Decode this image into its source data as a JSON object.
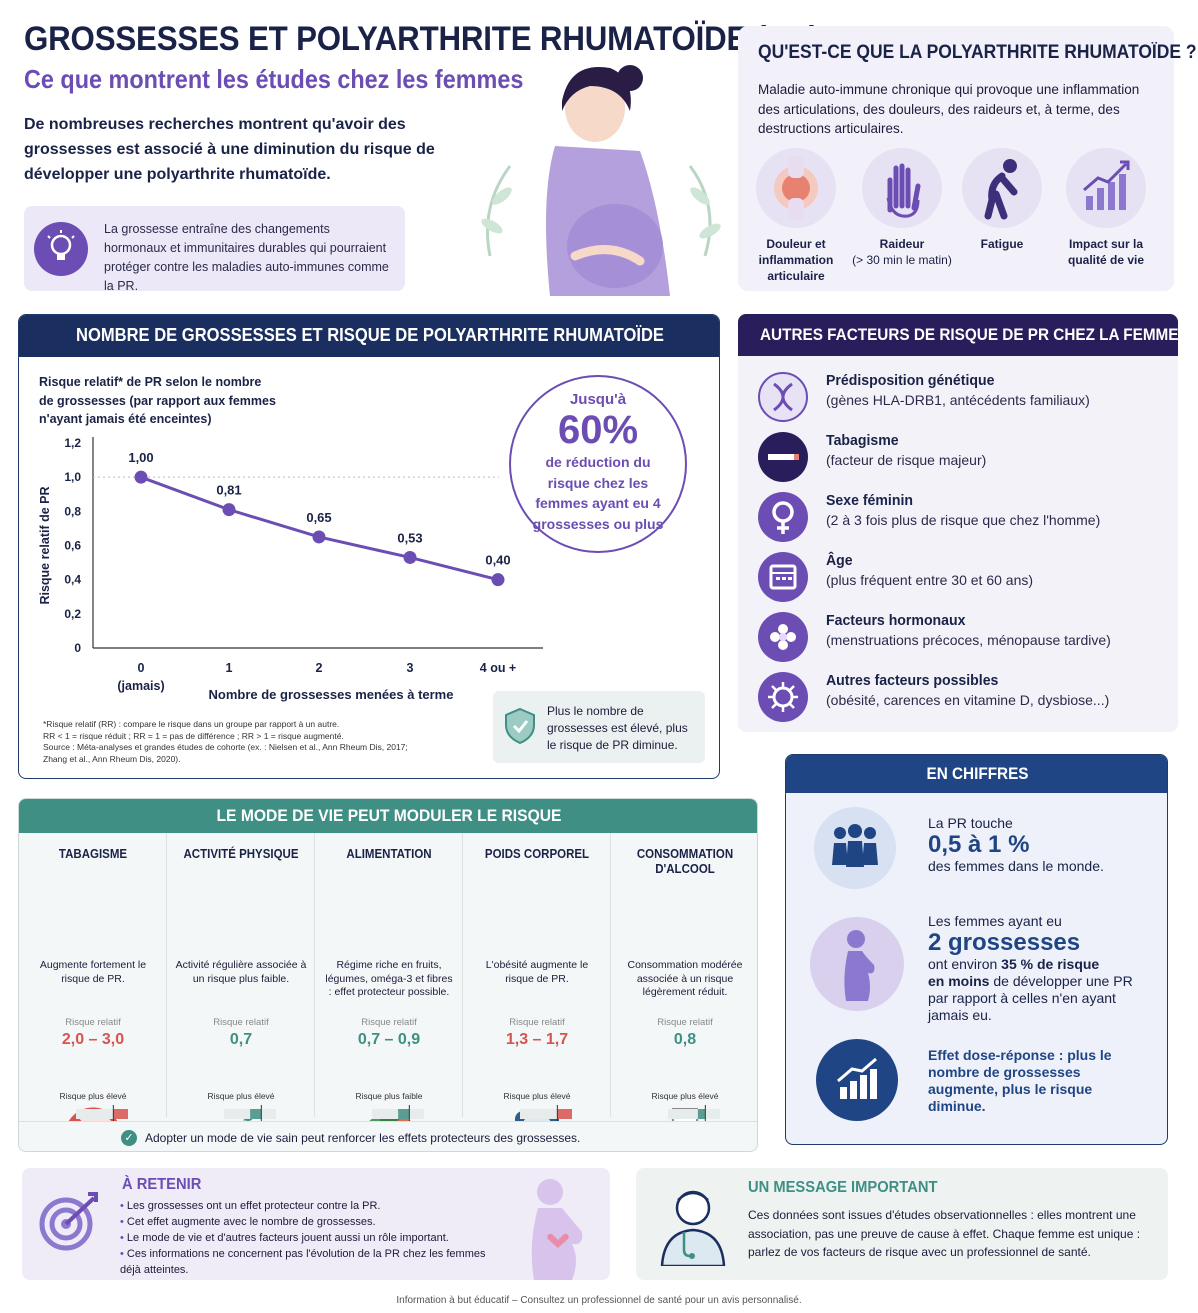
{
  "header": {
    "title": "GROSSESSES ET POLYARTHRITE RHUMATOÏDE (PR)",
    "subtitle": "Ce que montrent les études chez les femmes",
    "intro": "De nombreuses recherches montrent qu'avoir des grossesses est associé à une diminution du risque de développer une polyarthrite rhumatoïde.",
    "hormone_note": "La grossesse entraîne des changements hormonaux et immunitaires durables qui pourraient protéger contre les maladies auto-immunes comme la PR."
  },
  "what_is": {
    "title": "QU'EST-CE QUE LA POLYARTHRITE RHUMATOÏDE ?",
    "description": "Maladie auto-immune chronique qui provoque une inflammation des articulations, des douleurs, des raideurs et, à terme, des destructions articulaires.",
    "symptoms": [
      {
        "label": "Douleur et inflammation articulaire",
        "sub": "",
        "icon": "joint-icon"
      },
      {
        "label": "Raideur",
        "sub": "(> 30 min le matin)",
        "icon": "hand-icon"
      },
      {
        "label": "Fatigue",
        "sub": "",
        "icon": "tired-person-icon"
      },
      {
        "label": "Impact sur la qualité de vie",
        "sub": "",
        "icon": "chart-up-icon"
      }
    ]
  },
  "chart_panel": {
    "title": "NOMBRE DE GROSSESSES ET RISQUE DE POLYARTHRITE RHUMATOÏDE",
    "caption": "Risque relatif* de PR selon le nombre de grossesses (par rapport aux femmes n'ayant jamais été enceintes)",
    "highlight_prefix": "Jusqu'à",
    "highlight_value": "60%",
    "highlight_text": "de réduction du risque chez les femmes ayant eu 4 grossesses ou plus",
    "footnote_lines": [
      "*Risque relatif (RR) : compare le risque dans un groupe par rapport à un autre.",
      "RR < 1 = risque réduit ; RR = 1 = pas de différence ; RR > 1 = risque augmenté.",
      "Source : Méta-analyses et grandes études de cohorte (ex. : Nielsen et al., Ann Rheum Dis, 2017;",
      "Zhang et al., Ann Rheum Dis, 2020)."
    ],
    "shield_text": "Plus le nombre de grossesses est élevé, plus le risque de PR diminue."
  },
  "chart_data": {
    "type": "line",
    "title": "Risque relatif* de PR selon le nombre de grossesses (par rapport aux femmes n'ayant jamais été enceintes)",
    "xlabel": "Nombre de grossesses menées à terme",
    "ylabel": "Risque relatif de PR",
    "categories": [
      "0",
      "1",
      "2",
      "3",
      "4 ou +"
    ],
    "category_sublabels": [
      "(jamais)",
      "",
      "",
      "",
      ""
    ],
    "values": [
      1.0,
      0.81,
      0.65,
      0.53,
      0.4
    ],
    "value_labels": [
      "1,00",
      "0,81",
      "0,65",
      "0,53",
      "0,40"
    ],
    "ylim": [
      0,
      1.2
    ],
    "yticks": [
      "0",
      "0,2",
      "0,4",
      "0,6",
      "0,8",
      "1,0",
      "1,2"
    ],
    "reference_line": 1.0,
    "color": "#6b4db3"
  },
  "factors": {
    "title": "AUTRES FACTEURS DE RISQUE DE PR CHEZ LA FEMME",
    "items": [
      {
        "title": "Prédisposition génétique",
        "desc": "(gènes HLA-DRB1, antécédents familiaux)",
        "icon": "dna-icon"
      },
      {
        "title": "Tabagisme",
        "desc": "(facteur de risque majeur)",
        "icon": "cigarette-icon"
      },
      {
        "title": "Sexe féminin",
        "desc": "(2 à 3 fois plus de risque que chez l'homme)",
        "icon": "female-symbol-icon"
      },
      {
        "title": "Âge",
        "desc": "(plus fréquent entre 30 et 60 ans)",
        "icon": "calendar-icon"
      },
      {
        "title": "Facteurs hormonaux",
        "desc": "(menstruations précoces, ménopause tardive)",
        "icon": "flower-icon"
      },
      {
        "title": "Autres facteurs possibles",
        "desc": "(obésité, carences en vitamine D, dysbiose...)",
        "icon": "virus-icon"
      }
    ]
  },
  "lifestyle": {
    "title": "LE MODE DE VIE PEUT MODULER LE RISQUE",
    "rr_label": "Risque relatif",
    "columns": [
      {
        "title": "TABAGISME",
        "desc": "Augmente fortement le risque de PR.",
        "value": "2,0 – 3,0",
        "color": "#d9534f",
        "under": "Risque plus élevé",
        "icon": "no-smoking-icon"
      },
      {
        "title": "ACTIVITÉ PHYSIQUE",
        "desc": "Activité régulière associée à un risque plus faible.",
        "value": "0,7",
        "color": "#3f8f84",
        "under": "Risque plus élevé",
        "icon": "runner-icon"
      },
      {
        "title": "ALIMENTATION",
        "desc": "Régime riche en fruits, légumes, oméga-3 et fibres : effet protecteur possible.",
        "value": "0,7 – 0,9",
        "color": "#3f8f84",
        "under": "Risque plus faible",
        "icon": "salad-bowl-icon"
      },
      {
        "title": "POIDS CORPOREL",
        "desc": "L'obésité augmente le risque de PR.",
        "value": "1,3 – 1,7",
        "color": "#d9534f",
        "under": "Risque plus élevé",
        "icon": "scale-icon"
      },
      {
        "title": "CONSOMMATION D'ALCOOL",
        "desc": "Consommation modérée associée à un risque légèrement réduit.",
        "value": "0,8",
        "color": "#3f8f84",
        "under": "Risque plus élevé",
        "icon": "wine-glass-icon"
      }
    ],
    "axis_ticks": [
      "0",
      "1",
      "2",
      "3"
    ],
    "footer": "Adopter un mode de vie sain peut renforcer les effets protecteurs des grossesses."
  },
  "figures": {
    "title": "EN CHIFFRES",
    "f1_pre": "La PR touche",
    "f1_big": "0,5 à 1 %",
    "f1_post": "des femmes dans le monde.",
    "f2_pre": "Les femmes ayant eu",
    "f2_big": "2 grossesses",
    "f2_mid": "ont environ",
    "f2_pct": "35 % de risque",
    "f2_bold2": "en moins",
    "f2_post": "de développer une PR par rapport à celles n'en ayant jamais eu.",
    "f3": "Effet dose-réponse : plus le nombre de grossesses augmente, plus le risque diminue."
  },
  "retain": {
    "title": "À RETENIR",
    "items": [
      "Les grossesses ont un effet protecteur contre la PR.",
      "Cet effet augmente avec le nombre de grossesses.",
      "Le mode de vie et d'autres facteurs jouent aussi un rôle important.",
      "Ces informations ne concernent pas l'évolution de la PR chez les femmes déjà atteintes."
    ]
  },
  "message": {
    "title": "UN MESSAGE IMPORTANT",
    "text": "Ces données sont issues d'études observationnelles : elles montrent une association, pas une preuve de cause à effet. Chaque femme est unique : parlez de vos facteurs de risque avec un professionnel de santé."
  },
  "footer": "Information à but éducatif – Consultez un professionnel de santé pour un avis personnalisé.",
  "colors": {
    "navy": "#1a2f60",
    "purple": "#6b4db3",
    "teal": "#3f8f84",
    "red": "#d9534f"
  }
}
